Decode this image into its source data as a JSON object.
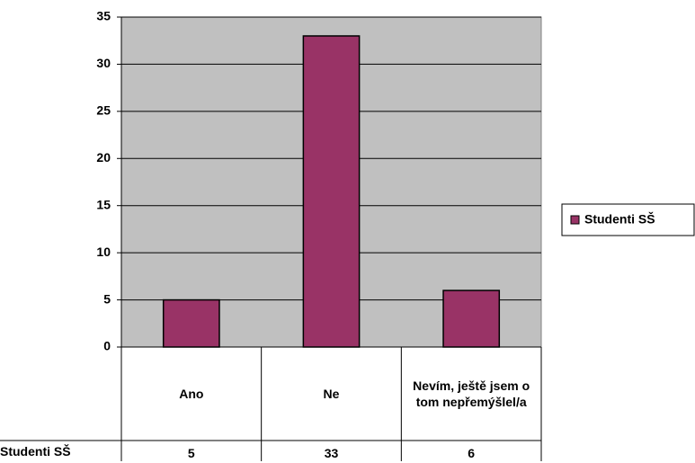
{
  "chart_data": {
    "type": "bar",
    "categories": [
      "Ano",
      "Ne",
      "Nevím, ještě jsem o tom nepřemýšlel/a"
    ],
    "series": [
      {
        "name": "Studenti SŠ",
        "color": "#993366",
        "values": [
          5,
          33,
          6
        ]
      }
    ],
    "ylim": [
      0,
      35
    ],
    "yticks": [
      0,
      5,
      10,
      15,
      20,
      25,
      30,
      35
    ],
    "grid": true,
    "legend": "right",
    "plot_background": "#c0c0c0"
  }
}
